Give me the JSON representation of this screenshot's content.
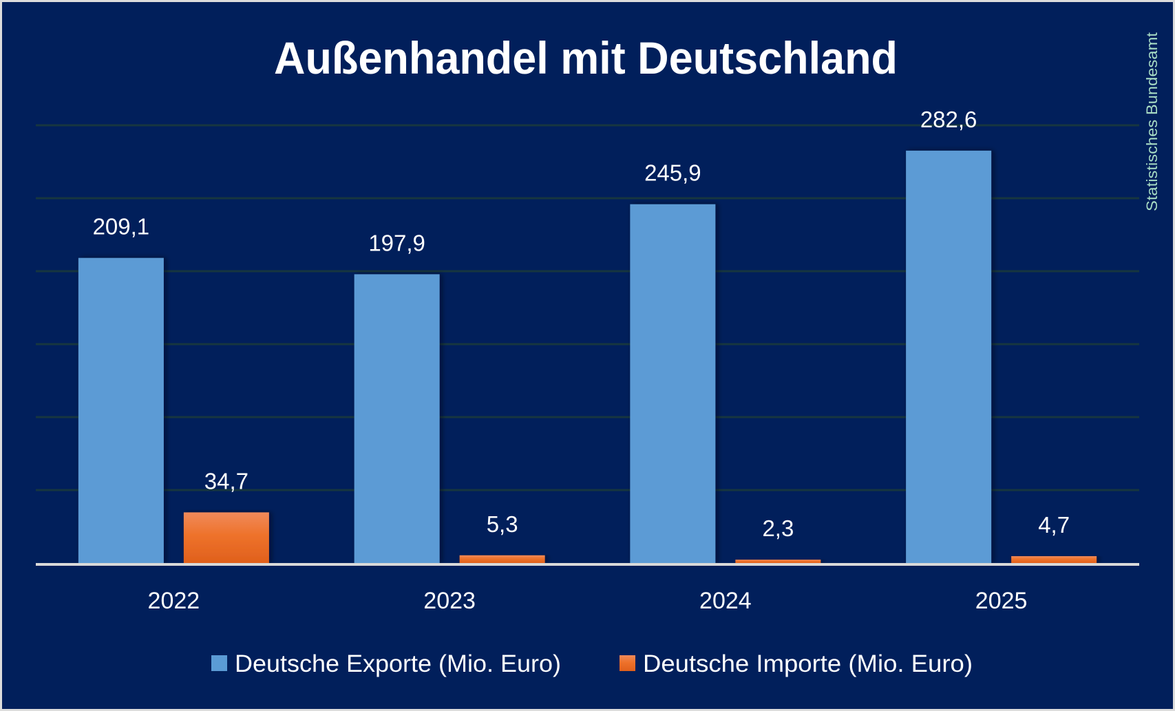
{
  "colors": {
    "background": "#011f5b",
    "grid": "#17363f",
    "axis": "#d9d9d9",
    "exports": "#5b9bd5",
    "imports_top": "#f08a5a",
    "imports_bottom": "#e0601c",
    "text": "#ffffff",
    "source": "#a8dcc4"
  },
  "source_label": "Statistisches Bundesamt",
  "chart_data": {
    "type": "bar",
    "title": "Außenhandel mit Deutschland",
    "xlabel": "",
    "ylabel": "",
    "categories": [
      "2022",
      "2023",
      "2024",
      "2025"
    ],
    "series": [
      {
        "name": "Deutsche Exporte (Mio. Euro)",
        "values": [
          209.1,
          197.9,
          245.9,
          282.6
        ],
        "labels": [
          "209,1",
          "197,9",
          "245,9",
          "282,6"
        ]
      },
      {
        "name": "Deutsche Importe (Mio. Euro)",
        "values": [
          34.7,
          5.3,
          2.3,
          4.7
        ],
        "labels": [
          "34,7",
          "5,3",
          "2,3",
          "4,7"
        ]
      }
    ],
    "ylim": [
      0,
      300
    ],
    "ytick_step": 50,
    "grid": true,
    "y_axis_labels_visible": false,
    "legend_position": "bottom"
  }
}
